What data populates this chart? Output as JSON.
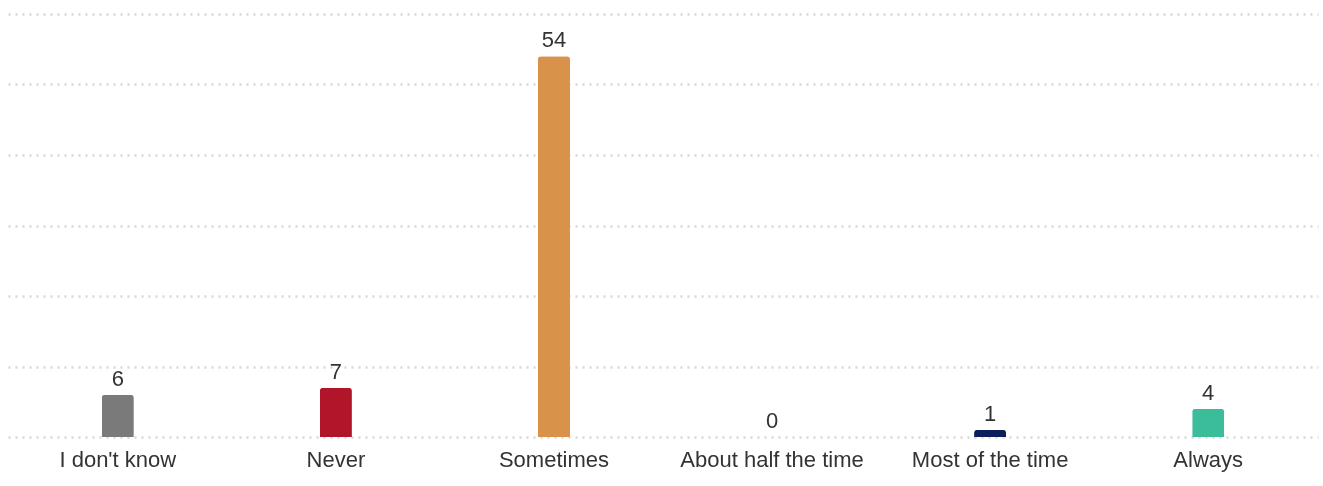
{
  "chart_data": {
    "type": "bar",
    "categories": [
      "I don't know",
      "Never",
      "Sometimes",
      "About half the time",
      "Most of the time",
      "Always"
    ],
    "values": [
      6,
      7,
      54,
      0,
      1,
      4
    ],
    "colors": [
      "#7a7a7a",
      "#b0152a",
      "#d8924a",
      "#7a1a6e",
      "#0c1f5c",
      "#3bbd9a"
    ],
    "ylim": [
      0,
      60
    ],
    "yticks": [
      0,
      10,
      20,
      30,
      40,
      50,
      60
    ],
    "grid": "y",
    "tick_labels": "x",
    "data_labels": true
  }
}
